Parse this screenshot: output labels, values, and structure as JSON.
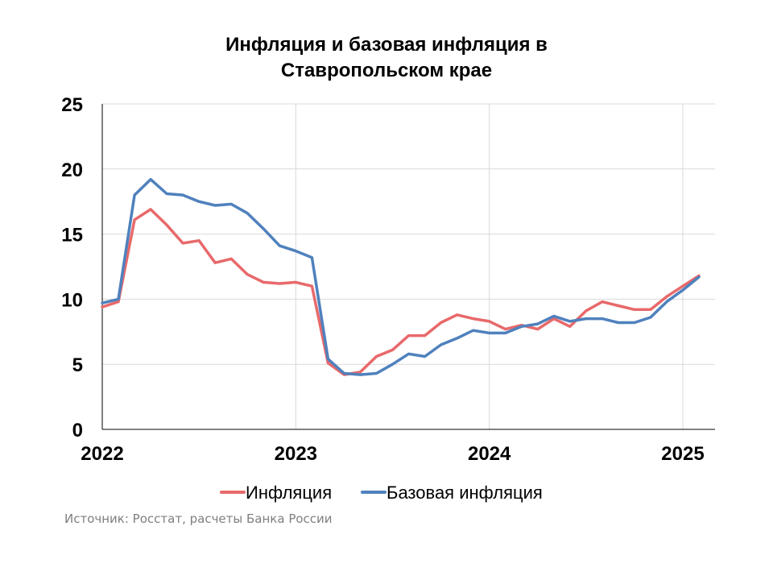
{
  "chart_data": {
    "type": "line",
    "title_lines": [
      "Инфляция и базовая инфляция в",
      "Ставропольском крае"
    ],
    "ylim": [
      0,
      25
    ],
    "yticks": [
      "0",
      "5",
      "10",
      "15",
      "20",
      "25"
    ],
    "xticks": [
      "2022",
      "2023",
      "2024",
      "2025"
    ],
    "x_start": "2022-01",
    "grid": true,
    "legend_position": "bottom",
    "series": [
      {
        "name": "Инфляция",
        "color": "#e8696b",
        "values": [
          9.4,
          9.8,
          16.1,
          16.9,
          15.7,
          14.3,
          14.5,
          12.8,
          13.1,
          11.9,
          11.3,
          11.2,
          11.3,
          11.0,
          5.1,
          4.2,
          4.4,
          5.6,
          6.1,
          7.2,
          7.2,
          8.2,
          8.8,
          8.5,
          8.3,
          7.7,
          8.0,
          7.7,
          8.5,
          7.9,
          9.1,
          9.8,
          9.5,
          9.2,
          9.2,
          10.2,
          11.0,
          11.8
        ]
      },
      {
        "name": "Базовая инфляция",
        "color": "#4f81bd",
        "values": [
          9.7,
          10.0,
          18.0,
          19.2,
          18.1,
          18.0,
          17.5,
          17.2,
          17.3,
          16.6,
          15.4,
          14.1,
          13.7,
          13.2,
          5.4,
          4.3,
          4.2,
          4.3,
          5.0,
          5.8,
          5.6,
          6.5,
          7.0,
          7.6,
          7.4,
          7.4,
          7.9,
          8.1,
          8.7,
          8.3,
          8.5,
          8.5,
          8.2,
          8.2,
          8.6,
          9.8,
          10.7,
          11.7
        ]
      }
    ]
  },
  "source": "Источник: Росстат, расчеты Банка России"
}
